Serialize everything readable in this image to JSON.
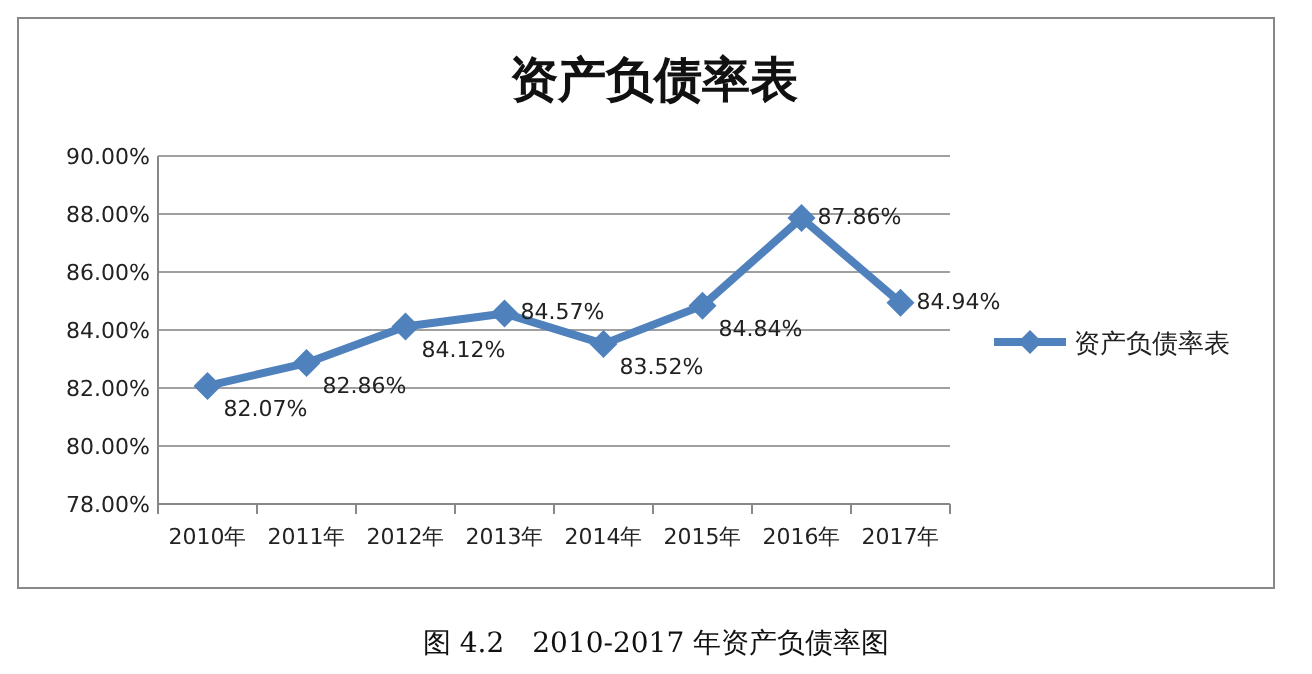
{
  "chart_data": {
    "type": "line",
    "title": "资产负债率表",
    "categories": [
      "2010年",
      "2011年",
      "2012年",
      "2013年",
      "2014年",
      "2015年",
      "2016年",
      "2017年"
    ],
    "series": [
      {
        "name": "资产负债率表",
        "color": "#4f81bd",
        "values": [
          82.07,
          82.86,
          84.12,
          84.57,
          83.52,
          84.84,
          87.86,
          84.94
        ],
        "value_labels": [
          "82.07%",
          "82.86%",
          "84.12%",
          "84.57%",
          "83.52%",
          "84.84%",
          "87.86%",
          "84.94%"
        ]
      }
    ],
    "ylim": [
      78,
      90
    ],
    "yticks": [
      {
        "value": 78,
        "label": "78.00%"
      },
      {
        "value": 80,
        "label": "80.00%"
      },
      {
        "value": 82,
        "label": "82.00%"
      },
      {
        "value": 84,
        "label": "84.00%"
      },
      {
        "value": 86,
        "label": "86.00%"
      },
      {
        "value": 88,
        "label": "88.00%"
      },
      {
        "value": 90,
        "label": "90.00%"
      }
    ],
    "grid": "y",
    "legend": "right",
    "marker": "diamond",
    "line_style": "solid",
    "annotations": [
      "图 4.2　2010-2017 年资产负债率图"
    ]
  }
}
